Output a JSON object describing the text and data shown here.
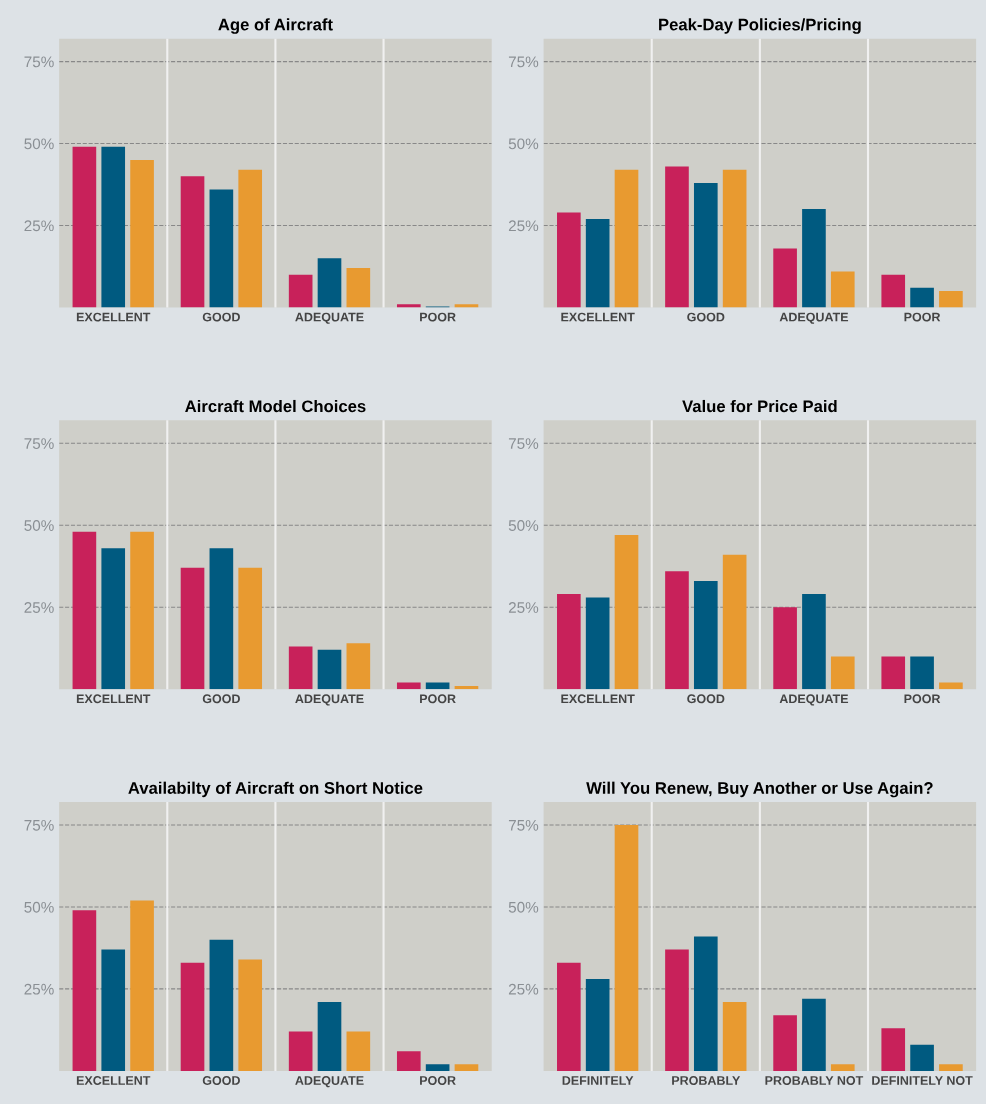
{
  "chart_data": [
    {
      "type": "bar",
      "title": "Age of Aircraft",
      "categories": [
        "EXCELLENT",
        "GOOD",
        "ADEQUATE",
        "POOR"
      ],
      "series": [
        {
          "color": "#c8215a",
          "values": [
            49,
            40,
            10,
            1
          ]
        },
        {
          "color": "#005a80",
          "values": [
            49,
            36,
            15,
            0.3
          ]
        },
        {
          "color": "#e89a30",
          "values": [
            45,
            42,
            12,
            1
          ]
        }
      ],
      "ylim": [
        0,
        82
      ],
      "yticks": [
        {
          "value": 25,
          "label": "25%"
        },
        {
          "value": 50,
          "label": "50%"
        },
        {
          "value": 75,
          "label": "75%"
        }
      ],
      "grid": "y"
    },
    {
      "type": "bar",
      "title": "Peak-Day Policies/Pricing",
      "categories": [
        "EXCELLENT",
        "GOOD",
        "ADEQUATE",
        "POOR"
      ],
      "series": [
        {
          "color": "#c8215a",
          "values": [
            29,
            43,
            18,
            10
          ]
        },
        {
          "color": "#005a80",
          "values": [
            27,
            38,
            30,
            6
          ]
        },
        {
          "color": "#e89a30",
          "values": [
            42,
            42,
            11,
            5
          ]
        }
      ],
      "ylim": [
        0,
        82
      ],
      "yticks": [
        {
          "value": 25,
          "label": "25%"
        },
        {
          "value": 50,
          "label": "50%"
        },
        {
          "value": 75,
          "label": "75%"
        }
      ],
      "grid": "y"
    },
    {
      "type": "bar",
      "title": "Aircraft Model Choices",
      "categories": [
        "EXCELLENT",
        "GOOD",
        "ADEQUATE",
        "POOR"
      ],
      "series": [
        {
          "color": "#c8215a",
          "values": [
            48,
            37,
            13,
            2
          ]
        },
        {
          "color": "#005a80",
          "values": [
            43,
            43,
            12,
            2
          ]
        },
        {
          "color": "#e89a30",
          "values": [
            48,
            37,
            14,
            1
          ]
        }
      ],
      "ylim": [
        0,
        82
      ],
      "yticks": [
        {
          "value": 25,
          "label": "25%"
        },
        {
          "value": 50,
          "label": "50%"
        },
        {
          "value": 75,
          "label": "75%"
        }
      ],
      "grid": "y"
    },
    {
      "type": "bar",
      "title": "Value for Price Paid",
      "categories": [
        "EXCELLENT",
        "GOOD",
        "ADEQUATE",
        "POOR"
      ],
      "series": [
        {
          "color": "#c8215a",
          "values": [
            29,
            36,
            25,
            10
          ]
        },
        {
          "color": "#005a80",
          "values": [
            28,
            33,
            29,
            10
          ]
        },
        {
          "color": "#e89a30",
          "values": [
            47,
            41,
            10,
            2
          ]
        }
      ],
      "ylim": [
        0,
        82
      ],
      "yticks": [
        {
          "value": 25,
          "label": "25%"
        },
        {
          "value": 50,
          "label": "50%"
        },
        {
          "value": 75,
          "label": "75%"
        }
      ],
      "grid": "y"
    },
    {
      "type": "bar",
      "title": "Availabilty of Aircraft on Short Notice",
      "categories": [
        "EXCELLENT",
        "GOOD",
        "ADEQUATE",
        "POOR"
      ],
      "series": [
        {
          "color": "#c8215a",
          "values": [
            49,
            33,
            12,
            6
          ]
        },
        {
          "color": "#005a80",
          "values": [
            37,
            40,
            21,
            2
          ]
        },
        {
          "color": "#e89a30",
          "values": [
            52,
            34,
            12,
            2
          ]
        }
      ],
      "ylim": [
        0,
        82
      ],
      "yticks": [
        {
          "value": 25,
          "label": "25%"
        },
        {
          "value": 50,
          "label": "50%"
        },
        {
          "value": 75,
          "label": "75%"
        }
      ],
      "grid": "y"
    },
    {
      "type": "bar",
      "title": "Will You Renew, Buy Another or Use Again?",
      "categories": [
        "DEFINITELY",
        "PROBABLY",
        "PROBABLY NOT",
        "DEFINITELY NOT"
      ],
      "series": [
        {
          "color": "#c8215a",
          "values": [
            33,
            37,
            17,
            13
          ]
        },
        {
          "color": "#005a80",
          "values": [
            28,
            41,
            22,
            8
          ]
        },
        {
          "color": "#e89a30",
          "values": [
            75,
            21,
            2,
            2
          ]
        }
      ],
      "ylim": [
        0,
        82
      ],
      "yticks": [
        {
          "value": 25,
          "label": "25%"
        },
        {
          "value": 50,
          "label": "50%"
        },
        {
          "value": 75,
          "label": "75%"
        }
      ],
      "grid": "y"
    }
  ]
}
